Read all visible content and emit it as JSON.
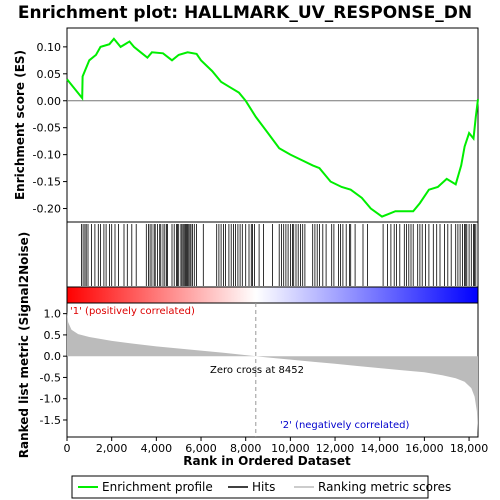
{
  "chart_data": {
    "type": "line",
    "title": "Enrichment plot: HALLMARK_UV_RESPONSE_DN",
    "x_max_rank": 18400,
    "top_panel": {
      "ylabel": "Enrichment score (ES)",
      "ylim": [
        -0.225,
        0.135
      ],
      "yticks": [
        0.1,
        0.05,
        0.0,
        -0.05,
        -0.1,
        -0.15,
        -0.2
      ],
      "ytick_labels": [
        "0.10",
        "0.05",
        "0.00",
        "-0.05",
        "-0.10",
        "-0.15",
        "-0.20"
      ],
      "series": [
        {
          "name": "Enrichment profile",
          "color": "#00ee00",
          "x": [
            0,
            680,
            700,
            1000,
            1300,
            1500,
            1900,
            2100,
            2400,
            2800,
            3000,
            3300,
            3600,
            3800,
            4300,
            4700,
            5000,
            5400,
            5800,
            6000,
            6500,
            6900,
            7300,
            7700,
            8000,
            8452,
            9000,
            9500,
            10000,
            10500,
            11000,
            11300,
            11800,
            12300,
            12700,
            13200,
            13600,
            14100,
            14400,
            14700,
            15000,
            15500,
            15800,
            16200,
            16600,
            17000,
            17400,
            17650,
            17800,
            18000,
            18200,
            18300,
            18400
          ],
          "values": [
            0.04,
            0.005,
            0.045,
            0.075,
            0.085,
            0.1,
            0.105,
            0.115,
            0.1,
            0.11,
            0.1,
            0.09,
            0.08,
            0.09,
            0.088,
            0.075,
            0.085,
            0.09,
            0.087,
            0.075,
            0.055,
            0.035,
            0.025,
            0.015,
            0.0,
            -0.03,
            -0.06,
            -0.088,
            -0.1,
            -0.11,
            -0.12,
            -0.125,
            -0.15,
            -0.16,
            -0.165,
            -0.18,
            -0.2,
            -0.215,
            -0.21,
            -0.205,
            -0.205,
            -0.205,
            -0.19,
            -0.165,
            -0.16,
            -0.145,
            -0.155,
            -0.12,
            -0.085,
            -0.06,
            -0.07,
            -0.03,
            0.003
          ]
        }
      ]
    },
    "hits_panel": {
      "name": "Hits",
      "positions": [
        650,
        720,
        800,
        860,
        940,
        1100,
        1250,
        1400,
        1500,
        1650,
        1750,
        1900,
        2000,
        2150,
        2300,
        2550,
        2700,
        2900,
        3100,
        3550,
        3650,
        3720,
        3800,
        3900,
        3950,
        4050,
        4150,
        4200,
        4300,
        4380,
        4450,
        4500,
        4700,
        4800,
        4900,
        4950,
        5000,
        5100,
        5150,
        5200,
        5250,
        5300,
        5350,
        5400,
        5450,
        5500,
        5550,
        5620,
        5700,
        5800,
        6100,
        6700,
        6800,
        6900,
        7000,
        7100,
        7250,
        7350,
        7450,
        7550,
        7650,
        7750,
        7850,
        8000,
        8150,
        8250,
        8300,
        8400,
        8600,
        8800,
        9200,
        9500,
        9600,
        9700,
        9800,
        9900,
        10000,
        10100,
        10150,
        10250,
        10350,
        10450,
        10550,
        10650,
        11000,
        11100,
        11200,
        11300,
        11450,
        11600,
        11850,
        11950,
        12150,
        12250,
        12350,
        12500,
        12650,
        12700,
        12900,
        13250,
        13450,
        14150,
        14350,
        14500,
        14650,
        14750,
        14900,
        15100,
        15200,
        15300,
        15400,
        15500,
        15700,
        15800,
        15900,
        16050,
        16200,
        16400,
        16550,
        16700,
        16900,
        17050,
        17200,
        17400,
        17500,
        17600,
        17700,
        17800,
        17850,
        17900,
        18000,
        18100,
        18200,
        18250,
        18300
      ]
    },
    "color_bar": {
      "low_color": "#ff0000",
      "high_color": "#0000ff",
      "mid_color": "#ffffff"
    },
    "bottom_panel": {
      "name": "Ranking metric scores",
      "ylabel": "Ranked list metric (Signal2Noise)",
      "ylim": [
        -1.9,
        1.25
      ],
      "yticks": [
        1.0,
        0.5,
        0.0,
        -0.5,
        -1.0,
        -1.5
      ],
      "ytick_labels": [
        "1.0",
        "0.5",
        "0.0",
        "-0.5",
        "-1.0",
        "-1.5"
      ],
      "metric_curve": {
        "x": [
          0,
          50,
          200,
          500,
          1000,
          2000,
          3000,
          4000,
          5000,
          6000,
          7000,
          8000,
          8452,
          9000,
          10000,
          11000,
          12000,
          13000,
          14000,
          15000,
          16000,
          16800,
          17400,
          17800,
          18100,
          18250,
          18350,
          18400
        ],
        "values": [
          1.05,
          0.8,
          0.62,
          0.52,
          0.45,
          0.36,
          0.29,
          0.23,
          0.18,
          0.13,
          0.08,
          0.025,
          0.0,
          -0.03,
          -0.08,
          -0.13,
          -0.18,
          -0.23,
          -0.28,
          -0.33,
          -0.38,
          -0.45,
          -0.52,
          -0.6,
          -0.75,
          -0.95,
          -1.3,
          -1.8
        ]
      },
      "zero_cross_rank": 8452,
      "zero_cross_label": "Zero cross at 8452",
      "pos_label": "'1' (positively correlated)",
      "neg_label": "'2' (negatively correlated)"
    },
    "x_axis": {
      "label": "Rank in Ordered Dataset",
      "ticks": [
        0,
        2000,
        4000,
        6000,
        8000,
        10000,
        12000,
        14000,
        16000,
        18000
      ],
      "tick_labels": [
        "0",
        "2,000",
        "4,000",
        "6,000",
        "8,000",
        "10,000",
        "12,000",
        "14,000",
        "16,000",
        "18,000"
      ]
    },
    "legend": {
      "placement": "bottom",
      "entries": [
        {
          "label": "Enrichment profile",
          "color": "#00ee00"
        },
        {
          "label": "Hits",
          "color": "#000000"
        },
        {
          "label": "Ranking metric scores",
          "color": "#bbbbbb"
        }
      ]
    }
  }
}
